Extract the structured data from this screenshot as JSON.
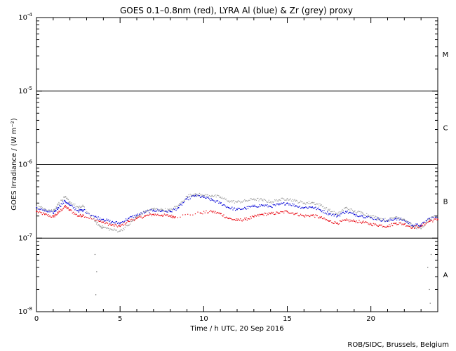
{
  "chart_data": {
    "type": "scatter",
    "title": "GOES 0.1–0.8nm (red), LYRA Al (blue) & Zr (grey) proxy",
    "xlabel": "Time / h UTC, 20 Sep 2016",
    "ylabel": "GOES Irradiance / (W m⁻²)",
    "xlim": [
      0,
      24
    ],
    "ylim": [
      1e-08,
      0.0001
    ],
    "yscale": "log",
    "x_ticks": [
      0,
      5,
      10,
      15,
      20
    ],
    "x_tick_labels": [
      "0",
      "5",
      "10",
      "15",
      "20"
    ],
    "y_tick_labels": [
      {
        "base": "10",
        "exp": "-4",
        "value": 0.0001
      },
      {
        "base": "10",
        "exp": "-5",
        "value": 1e-05
      },
      {
        "base": "10",
        "exp": "-6",
        "value": 1e-06
      },
      {
        "base": "10",
        "exp": "-7",
        "value": 1e-07
      },
      {
        "base": "10",
        "exp": "-8",
        "value": 1e-08
      }
    ],
    "flare_class_lines": [
      1e-05,
      1e-06,
      1e-07
    ],
    "flare_classes": [
      {
        "label": "M",
        "y": 3.2e-05
      },
      {
        "label": "C",
        "y": 3.2e-06
      },
      {
        "label": "B",
        "y": 3.2e-07
      },
      {
        "label": "A",
        "y": 3.2e-08
      }
    ],
    "series": [
      {
        "color": "#e8000b",
        "points": [
          [
            0,
            2.3e-07
          ],
          [
            0.5,
            2.1e-07
          ],
          [
            1,
            1.95e-07
          ],
          [
            1.3,
            2.2e-07
          ],
          [
            1.7,
            2.7e-07
          ],
          [
            2,
            2.4e-07
          ],
          [
            2.5,
            2e-07
          ],
          [
            2.8,
            2.05e-07
          ],
          [
            3.5,
            1.75e-07
          ],
          [
            4,
            1.65e-07
          ],
          [
            4.5,
            1.5e-07
          ],
          [
            5,
            1.45e-07
          ],
          [
            5.5,
            1.7e-07
          ],
          [
            6,
            1.85e-07
          ],
          [
            6.5,
            2e-07
          ],
          [
            7,
            2.1e-07
          ],
          [
            7.5,
            2.05e-07
          ],
          [
            8,
            2e-07
          ],
          [
            8.3,
            1.95e-07
          ],
          [
            9.8,
            2.2e-07
          ],
          [
            10.5,
            2.3e-07
          ],
          [
            11,
            2.15e-07
          ],
          [
            11.5,
            1.85e-07
          ],
          [
            12,
            1.75e-07
          ],
          [
            12.5,
            1.8e-07
          ],
          [
            13,
            1.95e-07
          ],
          [
            13.5,
            2.1e-07
          ],
          [
            14,
            2.15e-07
          ],
          [
            14.5,
            2.2e-07
          ],
          [
            15,
            2.3e-07
          ],
          [
            15.5,
            2.15e-07
          ],
          [
            16,
            2e-07
          ],
          [
            16.5,
            2.05e-07
          ],
          [
            17,
            1.9e-07
          ],
          [
            17.5,
            1.7e-07
          ],
          [
            18,
            1.6e-07
          ],
          [
            18.5,
            1.75e-07
          ],
          [
            19,
            1.7e-07
          ],
          [
            19.5,
            1.65e-07
          ],
          [
            20,
            1.55e-07
          ],
          [
            20.5,
            1.5e-07
          ],
          [
            21,
            1.45e-07
          ],
          [
            21.5,
            1.6e-07
          ],
          [
            22,
            1.55e-07
          ],
          [
            22.5,
            1.4e-07
          ],
          [
            23,
            1.45e-07
          ],
          [
            23.5,
            1.7e-07
          ],
          [
            24,
            1.8e-07
          ]
        ]
      },
      {
        "color": "#0000d6",
        "points": [
          [
            0,
            2.6e-07
          ],
          [
            0.5,
            2.35e-07
          ],
          [
            1,
            2.2e-07
          ],
          [
            1.3,
            2.6e-07
          ],
          [
            1.7,
            3.2e-07
          ],
          [
            2,
            2.8e-07
          ],
          [
            2.5,
            2.35e-07
          ],
          [
            2.8,
            2.4e-07
          ],
          [
            3.5,
            1.95e-07
          ],
          [
            4,
            1.8e-07
          ],
          [
            4.5,
            1.65e-07
          ],
          [
            5,
            1.6e-07
          ],
          [
            5.5,
            1.85e-07
          ],
          [
            6,
            2.05e-07
          ],
          [
            6.5,
            2.25e-07
          ],
          [
            7,
            2.4e-07
          ],
          [
            7.5,
            2.35e-07
          ],
          [
            8,
            2.3e-07
          ],
          [
            8.5,
            2.6e-07
          ],
          [
            9,
            3.4e-07
          ],
          [
            9.5,
            3.8e-07
          ],
          [
            10,
            3.6e-07
          ],
          [
            10.5,
            3.3e-07
          ],
          [
            11,
            3e-07
          ],
          [
            11.5,
            2.6e-07
          ],
          [
            12,
            2.45e-07
          ],
          [
            12.5,
            2.55e-07
          ],
          [
            13,
            2.7e-07
          ],
          [
            13.5,
            2.8e-07
          ],
          [
            14,
            2.7e-07
          ],
          [
            14.5,
            2.85e-07
          ],
          [
            15,
            3e-07
          ],
          [
            15.5,
            2.75e-07
          ],
          [
            16,
            2.6e-07
          ],
          [
            16.5,
            2.65e-07
          ],
          [
            17,
            2.4e-07
          ],
          [
            17.5,
            2.15e-07
          ],
          [
            18,
            2e-07
          ],
          [
            18.5,
            2.3e-07
          ],
          [
            19,
            2.1e-07
          ],
          [
            19.5,
            2e-07
          ],
          [
            20,
            1.9e-07
          ],
          [
            20.5,
            1.8e-07
          ],
          [
            21,
            1.7e-07
          ],
          [
            21.5,
            1.85e-07
          ],
          [
            22,
            1.75e-07
          ],
          [
            22.5,
            1.5e-07
          ],
          [
            23,
            1.5e-07
          ],
          [
            23.5,
            1.85e-07
          ],
          [
            24,
            2e-07
          ]
        ]
      },
      {
        "color": "#a0a0a0",
        "points": [
          [
            0,
            2.7e-07
          ],
          [
            0.5,
            2.5e-07
          ],
          [
            1,
            2.35e-07
          ],
          [
            1.3,
            2.9e-07
          ],
          [
            1.7,
            3.6e-07
          ],
          [
            2,
            3.1e-07
          ],
          [
            2.5,
            2.6e-07
          ],
          [
            2.8,
            2.7e-07
          ],
          [
            3.5,
            1.7e-07
          ],
          [
            3.8,
            1.45e-07
          ],
          [
            4,
            1.4e-07
          ],
          [
            4.5,
            1.3e-07
          ],
          [
            5,
            1.25e-07
          ],
          [
            5.5,
            1.5e-07
          ],
          [
            6,
            1.95e-07
          ],
          [
            6.5,
            2.3e-07
          ],
          [
            7,
            2.5e-07
          ],
          [
            7.5,
            2.45e-07
          ],
          [
            8,
            2.4e-07
          ],
          [
            8.5,
            2.8e-07
          ],
          [
            9,
            3.7e-07
          ],
          [
            9.5,
            4e-07
          ],
          [
            10,
            3.8e-07
          ],
          [
            10.5,
            3.8e-07
          ],
          [
            11,
            3.6e-07
          ],
          [
            11.5,
            3.2e-07
          ],
          [
            12,
            3.1e-07
          ],
          [
            12.5,
            3.2e-07
          ],
          [
            13,
            3.4e-07
          ],
          [
            13.5,
            3.3e-07
          ],
          [
            14,
            3.1e-07
          ],
          [
            14.5,
            3.3e-07
          ],
          [
            15,
            3.45e-07
          ],
          [
            15.5,
            3.2e-07
          ],
          [
            16,
            3e-07
          ],
          [
            16.5,
            3.05e-07
          ],
          [
            17,
            2.8e-07
          ],
          [
            17.5,
            2.4e-07
          ],
          [
            18,
            2.1e-07
          ],
          [
            18.5,
            2.6e-07
          ],
          [
            19,
            2.3e-07
          ],
          [
            19.5,
            2.2e-07
          ],
          [
            20,
            2e-07
          ],
          [
            20.5,
            1.85e-07
          ],
          [
            21,
            1.75e-07
          ],
          [
            21.5,
            1.95e-07
          ],
          [
            22,
            1.8e-07
          ],
          [
            22.5,
            1.45e-07
          ],
          [
            23,
            1.35e-07
          ],
          [
            23.5,
            1.8e-07
          ],
          [
            24,
            2e-07
          ]
        ]
      }
    ],
    "grey_dips": [
      [
        3.5,
        6e-08
      ],
      [
        3.6,
        3.5e-08
      ],
      [
        3.55,
        1.7e-08
      ],
      [
        23.4,
        4e-08
      ],
      [
        23.5,
        2e-08
      ],
      [
        23.55,
        1.3e-08
      ],
      [
        23.6,
        6e-08
      ]
    ]
  },
  "credit": "ROB/SIDC, Brussels, Belgium"
}
